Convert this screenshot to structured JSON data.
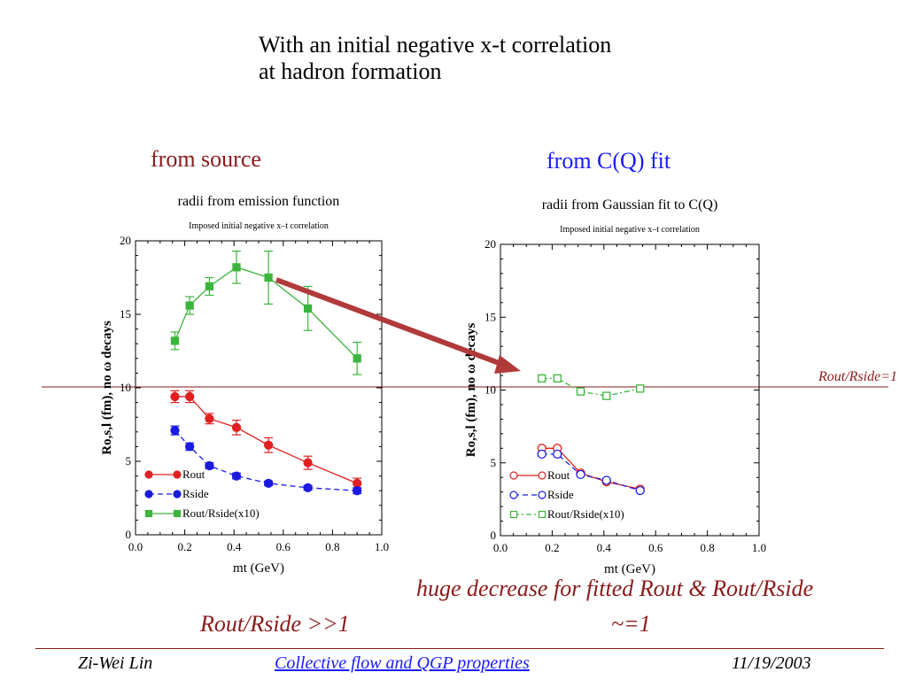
{
  "slide": {
    "title_line1": "With an initial negative x-t correlation",
    "title_line2": "at hadron formation",
    "label_left": "from source",
    "label_right": "from C(Q) fit",
    "note_decrease": "huge decrease for fitted Rout & Rout/Rside",
    "note_approx": "~=1",
    "note_left": "Rout/Rside >>1",
    "ref_line_label": "Rout/Rside=1",
    "footer": {
      "author": "Zi-Wei Lin",
      "talk": "Collective flow and QGP properties",
      "date": "11/19/2003"
    }
  },
  "colors": {
    "red": "#e02020",
    "blue": "#1a1ae0",
    "green": "#3cb43c",
    "dark_red": "#8b1a1a",
    "arrow": "#b03a3a"
  },
  "chart_data": [
    {
      "type": "scatter",
      "title": "radii from emission function",
      "subtitle": "Imposed initial negative x–t correlation",
      "xlabel": "mt (GeV)",
      "ylabel": "Ro,s,l (fm), no ω decays",
      "xlim": [
        0.0,
        1.0
      ],
      "ylim": [
        0,
        20
      ],
      "xticks": [
        "0.0",
        "0.2",
        "0.4",
        "0.6",
        "0.8",
        "1.0"
      ],
      "yticks": [
        "0",
        "5",
        "10",
        "15",
        "20"
      ],
      "legend_position": "bottom-left",
      "series": [
        {
          "name": "Rout",
          "marker": "filled-circle",
          "line": "solid",
          "color": "#e02020",
          "x": [
            0.16,
            0.22,
            0.3,
            0.41,
            0.54,
            0.7,
            0.9
          ],
          "y": [
            9.4,
            9.4,
            7.9,
            7.3,
            6.1,
            4.9,
            3.5
          ],
          "err": [
            0.4,
            0.4,
            0.35,
            0.5,
            0.5,
            0.45,
            0.35
          ]
        },
        {
          "name": "Rside",
          "marker": "filled-circle",
          "line": "dashed",
          "color": "#1a1ae0",
          "x": [
            0.16,
            0.22,
            0.3,
            0.41,
            0.54,
            0.7,
            0.9
          ],
          "y": [
            7.1,
            6.0,
            4.7,
            4.0,
            3.5,
            3.2,
            3.0
          ],
          "err": [
            0.3,
            0.25,
            0.2,
            0.2,
            0.15,
            0.15,
            0.2
          ]
        },
        {
          "name": "Rout/Rside(x10)",
          "marker": "filled-square",
          "line": "solid",
          "color": "#3cb43c",
          "x": [
            0.16,
            0.22,
            0.3,
            0.41,
            0.54,
            0.7,
            0.9
          ],
          "y": [
            13.2,
            15.6,
            16.9,
            18.2,
            17.5,
            15.4,
            12.0
          ],
          "err": [
            0.6,
            0.6,
            0.6,
            1.1,
            1.8,
            1.5,
            1.1
          ]
        }
      ]
    },
    {
      "type": "scatter",
      "title": "radii from Gaussian fit to C(Q)",
      "subtitle": "Imposed initial negative x–t correlation",
      "xlabel": "mt (GeV)",
      "ylabel": "Ro,s,l (fm), no ω decays",
      "xlim": [
        0.0,
        1.0
      ],
      "ylim": [
        0,
        20
      ],
      "xticks": [
        "0.0",
        "0.2",
        "0.4",
        "0.6",
        "0.8",
        "1.0"
      ],
      "yticks": [
        "0",
        "5",
        "10",
        "15",
        "20"
      ],
      "legend_position": "bottom-left",
      "series": [
        {
          "name": "Rout",
          "marker": "open-circle",
          "line": "solid",
          "color": "#e02020",
          "x": [
            0.16,
            0.22,
            0.31,
            0.41,
            0.54
          ],
          "y": [
            6.0,
            6.0,
            4.3,
            3.7,
            3.2
          ]
        },
        {
          "name": "Rside",
          "marker": "open-circle",
          "line": "dashed",
          "color": "#1a1ae0",
          "x": [
            0.16,
            0.22,
            0.31,
            0.41,
            0.54
          ],
          "y": [
            5.6,
            5.6,
            4.2,
            3.8,
            3.1
          ]
        },
        {
          "name": "Rout/Rside(x10)",
          "marker": "open-square",
          "line": "dash-dot",
          "color": "#3cb43c",
          "x": [
            0.16,
            0.22,
            0.31,
            0.41,
            0.54
          ],
          "y": [
            10.8,
            10.8,
            9.9,
            9.6,
            10.1
          ]
        }
      ]
    }
  ]
}
